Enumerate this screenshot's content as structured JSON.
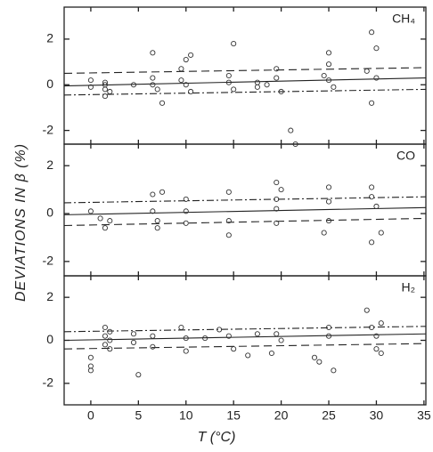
{
  "chart_data": {
    "type": "scatter",
    "xlabel": "T (°C)",
    "ylabel": "DEVIATIONS IN β (%)",
    "xlim": [
      -2.8,
      35.2
    ],
    "xticks": [
      0,
      5,
      10,
      15,
      20,
      25,
      30,
      35
    ],
    "color": "#333333",
    "panels": [
      {
        "label": "CH₄",
        "ylim": [
          -2.6,
          3.4
        ],
        "yticks": [
          -2,
          0,
          2
        ],
        "x": [
          0,
          0,
          1.5,
          1.5,
          1.5,
          1.5,
          2,
          4.5,
          6.5,
          6.5,
          6.5,
          7,
          7.5,
          9.5,
          9.5,
          10,
          10,
          10.5,
          10.5,
          14.5,
          14.5,
          15,
          15,
          17.5,
          17.5,
          18.5,
          19.5,
          19.5,
          20,
          21,
          21.5,
          24.5,
          25,
          25,
          25,
          25.5,
          29,
          29.5,
          29.5,
          30,
          30
        ],
        "y": [
          0.2,
          -0.1,
          0.1,
          0,
          -0.2,
          -0.5,
          -0.3,
          0,
          1.4,
          0.3,
          0,
          -0.2,
          -0.8,
          0.7,
          0.2,
          1.1,
          0,
          -0.3,
          1.3,
          0.4,
          0.1,
          1.8,
          -0.2,
          0.1,
          -0.1,
          0,
          0.7,
          0.3,
          -0.3,
          -2.0,
          -2.6,
          0.4,
          1.4,
          0.9,
          0.2,
          -0.1,
          0.6,
          -0.8,
          2.3,
          1.6,
          0.3
        ],
        "lines": [
          {
            "style": "dashed",
            "x": [
              -2.8,
              35.2
            ],
            "y": [
              0.5,
              0.75
            ]
          },
          {
            "style": "solid",
            "x": [
              -2.8,
              35.2
            ],
            "y": [
              -0.05,
              0.3
            ]
          },
          {
            "style": "dashdot",
            "x": [
              -2.8,
              35.2
            ],
            "y": [
              -0.45,
              -0.2
            ]
          }
        ]
      },
      {
        "label": "CO",
        "ylim": [
          -2.6,
          2.9
        ],
        "yticks": [
          -2,
          0,
          2
        ],
        "x": [
          0,
          1,
          1.5,
          2,
          6.5,
          6.5,
          7,
          7,
          7.5,
          10,
          10,
          10,
          14.5,
          14.5,
          14.5,
          19.5,
          19.5,
          19.5,
          19.5,
          20,
          25,
          25,
          25,
          24.5,
          29.5,
          29.5,
          30,
          29.5,
          30.5
        ],
        "y": [
          0.1,
          -0.2,
          -0.6,
          -0.3,
          0.8,
          0.1,
          -0.3,
          -0.6,
          0.9,
          0.6,
          0.1,
          -0.4,
          0.9,
          -0.3,
          -0.9,
          1.3,
          0.6,
          0.2,
          -0.4,
          1.0,
          1.1,
          0.5,
          -0.3,
          -0.8,
          1.1,
          0.7,
          0.3,
          -1.2,
          -0.8
        ],
        "lines": [
          {
            "style": "dashdot",
            "x": [
              -2.8,
              35.2
            ],
            "y": [
              0.45,
              0.7
            ]
          },
          {
            "style": "solid",
            "x": [
              -2.8,
              35.2
            ],
            "y": [
              -0.05,
              0.25
            ]
          },
          {
            "style": "dashed",
            "x": [
              -2.8,
              35.2
            ],
            "y": [
              -0.5,
              -0.2
            ]
          }
        ]
      },
      {
        "label": "H₂",
        "ylim": [
          -3,
          3
        ],
        "yticks": [
          -2,
          0,
          2
        ],
        "x": [
          0,
          0,
          0,
          1.5,
          1.5,
          1.5,
          2,
          2,
          2,
          4.5,
          4.5,
          5,
          6.5,
          6.5,
          9.5,
          10,
          10,
          12,
          13.5,
          14.5,
          15,
          16.5,
          17.5,
          19.5,
          19,
          20,
          23.5,
          24,
          25,
          25,
          25.5,
          29,
          29.5,
          30,
          30,
          30.5,
          30.5
        ],
        "y": [
          -0.8,
          -1.2,
          -1.4,
          0.6,
          0.2,
          -0.2,
          0.4,
          0,
          -0.4,
          0.3,
          -0.1,
          -1.6,
          0.2,
          -0.3,
          0.6,
          0.1,
          -0.5,
          0.1,
          0.5,
          0.2,
          -0.4,
          -0.7,
          0.3,
          0.3,
          -0.6,
          0,
          -0.8,
          -1.0,
          0.6,
          0.2,
          -1.4,
          1.4,
          0.6,
          0.2,
          -0.4,
          0.8,
          -0.6
        ],
        "lines": [
          {
            "style": "dashdot",
            "x": [
              -2.8,
              35.2
            ],
            "y": [
              0.4,
              0.65
            ]
          },
          {
            "style": "solid",
            "x": [
              -2.8,
              35.2
            ],
            "y": [
              0,
              0.3
            ]
          },
          {
            "style": "dashed",
            "x": [
              -2.8,
              35.2
            ],
            "y": [
              -0.4,
              -0.15
            ]
          }
        ]
      }
    ]
  }
}
